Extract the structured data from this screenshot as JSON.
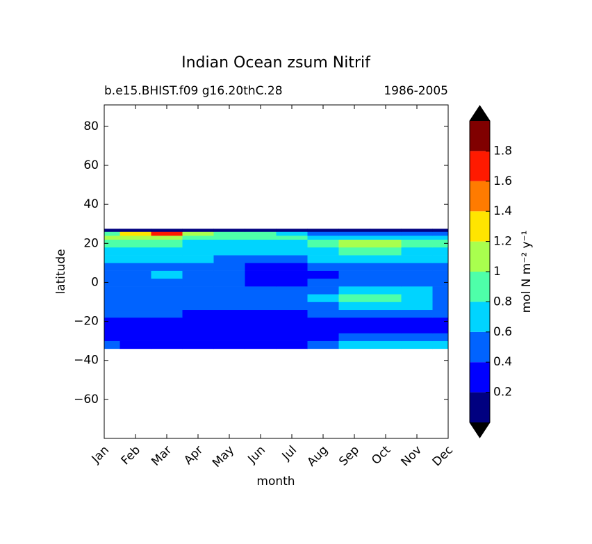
{
  "chart_data": {
    "type": "contour",
    "title": "Indian Ocean zsum Nitrif",
    "subtitle_left": "b.e15.BHIST.f09 g16.20thC.28",
    "subtitle_right": "1986-2005",
    "xlabel": "month",
    "ylabel": "latitude",
    "categories": [
      "Jan",
      "Feb",
      "Mar",
      "Apr",
      "May",
      "Jun",
      "Jul",
      "Aug",
      "Sep",
      "Oct",
      "Nov",
      "Dec"
    ],
    "ylim": [
      -80,
      91
    ],
    "yticks": [
      {
        "value": -60,
        "label": "−60"
      },
      {
        "value": -40,
        "label": "−40"
      },
      {
        "value": -20,
        "label": "−20"
      },
      0,
      20,
      40,
      60,
      80
    ],
    "y_edges": [
      -34,
      -30,
      -26,
      -22,
      -18,
      -14,
      -10,
      -6,
      -2,
      2,
      6,
      10,
      14,
      18,
      22,
      24,
      26,
      27.5
    ],
    "z": [
      [
        0.5,
        0.3,
        0.3,
        0.3,
        0.3,
        0.3,
        0.3,
        0.5,
        0.7,
        0.7,
        0.7,
        0.7
      ],
      [
        0.3,
        0.3,
        0.3,
        0.3,
        0.3,
        0.3,
        0.3,
        0.3,
        0.5,
        0.5,
        0.5,
        0.5
      ],
      [
        0.3,
        0.3,
        0.3,
        0.3,
        0.3,
        0.3,
        0.3,
        0.3,
        0.3,
        0.3,
        0.3,
        0.3
      ],
      [
        0.3,
        0.3,
        0.3,
        0.3,
        0.3,
        0.3,
        0.3,
        0.3,
        0.3,
        0.3,
        0.3,
        0.3
      ],
      [
        0.5,
        0.5,
        0.5,
        0.3,
        0.3,
        0.3,
        0.3,
        0.5,
        0.5,
        0.5,
        0.5,
        0.5
      ],
      [
        0.5,
        0.5,
        0.5,
        0.5,
        0.5,
        0.5,
        0.5,
        0.5,
        0.7,
        0.7,
        0.7,
        0.5
      ],
      [
        0.5,
        0.5,
        0.5,
        0.5,
        0.5,
        0.5,
        0.5,
        0.7,
        0.9,
        0.9,
        0.7,
        0.5
      ],
      [
        0.5,
        0.5,
        0.5,
        0.5,
        0.5,
        0.5,
        0.5,
        0.5,
        0.7,
        0.7,
        0.7,
        0.5
      ],
      [
        0.5,
        0.5,
        0.5,
        0.5,
        0.5,
        0.3,
        0.3,
        0.5,
        0.5,
        0.5,
        0.5,
        0.5
      ],
      [
        0.5,
        0.5,
        0.7,
        0.5,
        0.5,
        0.3,
        0.3,
        0.3,
        0.5,
        0.5,
        0.5,
        0.5
      ],
      [
        0.5,
        0.5,
        0.5,
        0.5,
        0.5,
        0.3,
        0.3,
        0.5,
        0.5,
        0.5,
        0.5,
        0.5
      ],
      [
        0.7,
        0.7,
        0.7,
        0.7,
        0.5,
        0.5,
        0.5,
        0.7,
        0.7,
        0.7,
        0.7,
        0.7
      ],
      [
        0.7,
        0.7,
        0.7,
        0.7,
        0.7,
        0.7,
        0.7,
        0.7,
        0.9,
        0.9,
        0.7,
        0.7
      ],
      [
        0.9,
        0.9,
        0.9,
        0.7,
        0.7,
        0.7,
        0.7,
        0.9,
        1.1,
        1.1,
        0.9,
        0.9
      ],
      [
        1.1,
        1.1,
        1.1,
        0.9,
        0.9,
        0.9,
        0.9,
        0.7,
        0.7,
        0.7,
        0.7,
        0.7
      ],
      [
        0.9,
        1.3,
        1.7,
        1.1,
        0.9,
        0.9,
        0.7,
        0.5,
        0.5,
        0.5,
        0.5,
        0.5
      ],
      [
        0.1,
        0.1,
        0.1,
        0.1,
        0.1,
        0.1,
        0.1,
        0.1,
        0.1,
        0.1,
        0.1,
        0.1
      ]
    ],
    "levels": [
      0,
      0.2,
      0.4,
      0.6,
      0.8,
      1,
      1.2,
      1.4,
      1.6,
      1.8,
      2
    ],
    "colors": [
      "#000080",
      "#0000ff",
      "#0063ff",
      "#00d4ff",
      "#4effa9",
      "#a9ff4e",
      "#ffe500",
      "#ff7b00",
      "#ff1a00",
      "#800000"
    ],
    "extend_color": "#000000",
    "cticks": [
      0.2,
      0.4,
      0.6,
      0.8,
      1,
      1.2,
      1.4,
      1.6,
      1.8
    ],
    "colorbar_label": "mol N m⁻² y⁻¹"
  }
}
